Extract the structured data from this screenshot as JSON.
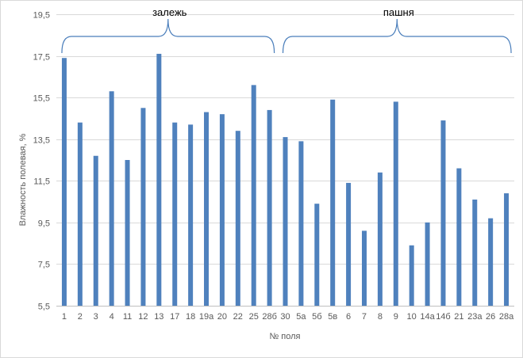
{
  "chart_data": {
    "type": "bar",
    "title": "",
    "xlabel": "№ поля",
    "ylabel": "Влажность полевая, %",
    "ylim": [
      5.5,
      19.5
    ],
    "yticks": [
      "5,5",
      "7,5",
      "9,5",
      "11,5",
      "13,5",
      "15,5",
      "17,5",
      "19,5"
    ],
    "grid": true,
    "legend": "none",
    "bar_color": "#4f81bd",
    "brace_color": "#4a7ebb",
    "categories": [
      "1",
      "2",
      "3",
      "4",
      "11",
      "12",
      "13",
      "17",
      "18",
      "19а",
      "20",
      "22",
      "25",
      "28б",
      "30",
      "5а",
      "5б",
      "5в",
      "6",
      "7",
      "8",
      "9",
      "10",
      "14а",
      "14б",
      "21",
      "23а",
      "26",
      "28а"
    ],
    "values": [
      17.4,
      14.3,
      12.7,
      15.8,
      12.5,
      15.0,
      17.6,
      14.3,
      14.2,
      14.8,
      14.7,
      13.9,
      16.1,
      14.9,
      13.6,
      13.4,
      10.4,
      15.4,
      11.4,
      9.1,
      11.9,
      15.3,
      8.4,
      9.5,
      14.4,
      12.1,
      10.6,
      9.7,
      10.9
    ],
    "annotations": [
      {
        "text": "залежь",
        "from_category": "1",
        "to_category": "28б"
      },
      {
        "text": "пашня",
        "from_category": "30",
        "to_category": "28а"
      }
    ]
  }
}
